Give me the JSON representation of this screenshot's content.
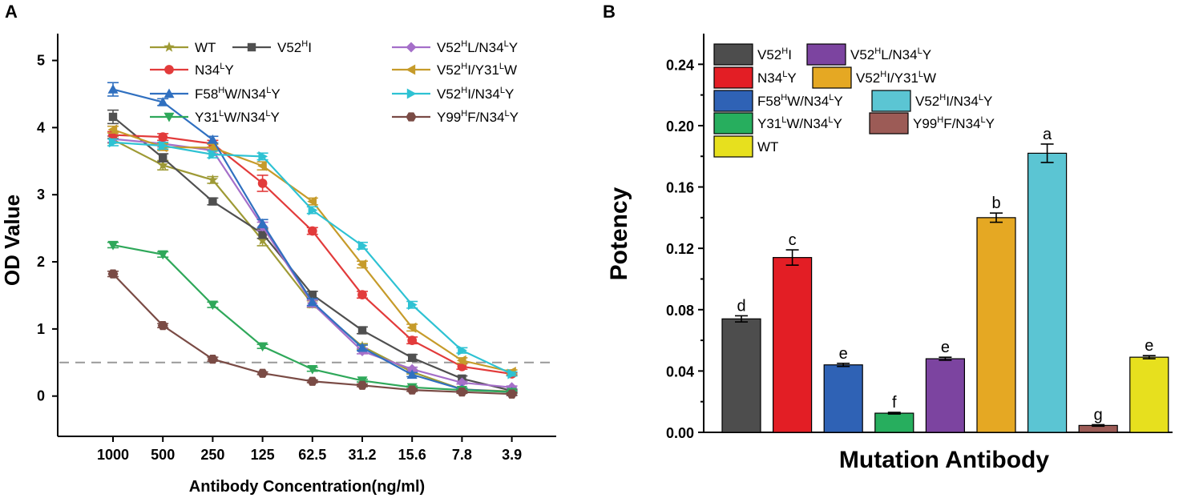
{
  "chart_data": [
    {
      "panel": "A",
      "type": "line",
      "xlabel": "Antibody Concentration(ng/ml)",
      "ylabel": "OD Value",
      "categories": [
        "1000",
        "500",
        "250",
        "125",
        "62.5",
        "31.2",
        "15.6",
        "7.8",
        "3.9"
      ],
      "ylim": [
        -0.6,
        5.4
      ],
      "yticks": [
        0,
        1,
        2,
        3,
        4,
        5
      ],
      "cutoff": 0.5,
      "series": [
        {
          "name": "WT",
          "base": "WT",
          "color": "#9E9A35",
          "marker": "star",
          "values": [
            3.82,
            3.44,
            3.22,
            2.32,
            1.37,
            0.74,
            0.36,
            0.1,
            0.07
          ],
          "errors": [
            0.05,
            0.07,
            0.05,
            0.08,
            0.05,
            0.04,
            0.03,
            0.02,
            0.02
          ]
        },
        {
          "name": "V52HI",
          "base": "V52",
          "supA": "H",
          "mid": "I",
          "color": "#505050",
          "marker": "square",
          "values": [
            4.16,
            3.55,
            2.9,
            2.42,
            1.51,
            0.98,
            0.57,
            0.26,
            0.08
          ],
          "errors": [
            0.1,
            0.06,
            0.05,
            0.07,
            0.05,
            0.05,
            0.05,
            0.04,
            0.02
          ]
        },
        {
          "name": "V52HL/N34LY",
          "base": "V52",
          "supA": "H",
          "mid": "L/N34",
          "supB": "L",
          "tail": "Y",
          "color": "#A56FC9",
          "marker": "diamond",
          "values": [
            3.83,
            3.76,
            3.66,
            2.53,
            1.38,
            0.67,
            0.4,
            0.2,
            0.13
          ],
          "errors": [
            0.05,
            0.05,
            0.05,
            0.06,
            0.05,
            0.04,
            0.03,
            0.02,
            0.02
          ]
        },
        {
          "name": "N34LY",
          "base": "N34",
          "supA": "L",
          "mid": "Y",
          "color": "#E23B3B",
          "marker": "circle",
          "values": [
            3.89,
            3.86,
            3.76,
            3.17,
            2.46,
            1.51,
            0.83,
            0.44,
            0.33
          ],
          "errors": [
            0.05,
            0.05,
            0.05,
            0.12,
            0.05,
            0.05,
            0.05,
            0.04,
            0.02
          ]
        },
        {
          "name": "V52HI/Y31LW",
          "base": "V52",
          "supA": "H",
          "mid": "I/Y31",
          "supB": "L",
          "tail": "W",
          "color": "#C69B2A",
          "marker": "tri-left",
          "values": [
            3.97,
            3.71,
            3.7,
            3.43,
            2.9,
            1.96,
            1.02,
            0.53,
            0.36
          ],
          "errors": [
            0.05,
            0.05,
            0.05,
            0.06,
            0.05,
            0.05,
            0.05,
            0.04,
            0.03
          ]
        },
        {
          "name": "F58HW/N34LY",
          "base": "F58",
          "supA": "H",
          "mid": "W/N34",
          "supB": "L",
          "tail": "Y",
          "color": "#3070C0",
          "marker": "tri-up",
          "values": [
            4.57,
            4.38,
            3.82,
            2.57,
            1.4,
            0.72,
            0.32,
            0.1,
            0.06
          ],
          "errors": [
            0.1,
            0.05,
            0.05,
            0.06,
            0.05,
            0.04,
            0.03,
            0.02,
            0.02
          ]
        },
        {
          "name": "V52HI/N34LY",
          "base": "V52",
          "supA": "H",
          "mid": "I/N34",
          "supB": "L",
          "tail": "Y",
          "color": "#2EC2D3",
          "marker": "tri-right",
          "values": [
            3.78,
            3.73,
            3.6,
            3.57,
            2.77,
            2.24,
            1.36,
            0.68,
            0.33
          ],
          "errors": [
            0.05,
            0.05,
            0.05,
            0.05,
            0.05,
            0.05,
            0.05,
            0.04,
            0.03
          ]
        },
        {
          "name": "Y31LW/N34LY",
          "base": "Y31",
          "supA": "L",
          "mid": "W/N34",
          "supB": "L",
          "tail": "Y",
          "color": "#2FA85A",
          "marker": "tri-down",
          "values": [
            2.25,
            2.11,
            1.36,
            0.74,
            0.4,
            0.23,
            0.13,
            0.09,
            0.06
          ],
          "errors": [
            0.04,
            0.04,
            0.04,
            0.03,
            0.03,
            0.02,
            0.02,
            0.02,
            0.02
          ]
        },
        {
          "name": "Y99HF/N34LY",
          "base": "Y99",
          "supA": "H",
          "mid": "F/N34",
          "supB": "L",
          "tail": "Y",
          "color": "#7A4B45",
          "marker": "hexagon",
          "values": [
            1.82,
            1.05,
            0.55,
            0.34,
            0.22,
            0.16,
            0.09,
            0.06,
            0.03
          ],
          "errors": [
            0.04,
            0.03,
            0.03,
            0.02,
            0.02,
            0.02,
            0.02,
            0.02,
            0.02
          ]
        }
      ]
    },
    {
      "panel": "B",
      "type": "bar",
      "xlabel": "Mutation Antibody",
      "ylabel": "Potency",
      "ylim": [
        0,
        0.26
      ],
      "yticks": [
        "0.00",
        "0.04",
        "0.08",
        "0.12",
        "0.16",
        "0.20",
        "0.24"
      ],
      "bars": [
        {
          "name": "V52HI",
          "value": 0.074,
          "error": 0.002,
          "letter": "d",
          "color": "#4D4D4D"
        },
        {
          "name": "N34LY",
          "value": 0.114,
          "error": 0.005,
          "letter": "c",
          "color": "#E31E25"
        },
        {
          "name": "F58HW/N34LY",
          "value": 0.044,
          "error": 0.001,
          "letter": "e",
          "color": "#2F62B5"
        },
        {
          "name": "Y31LW/N34LY",
          "value": 0.0125,
          "error": 0.0005,
          "letter": "f",
          "color": "#27AE5E"
        },
        {
          "name": "V52HL/N34LY",
          "value": 0.048,
          "error": 0.001,
          "letter": "e",
          "color": "#7C44A0"
        },
        {
          "name": "V52HI/Y31LW",
          "value": 0.14,
          "error": 0.003,
          "letter": "b",
          "color": "#E5A823"
        },
        {
          "name": "V52HI/N34LY",
          "value": 0.182,
          "error": 0.006,
          "letter": "a",
          "color": "#5BC5D3"
        },
        {
          "name": "Y99HF/N34LY",
          "value": 0.0045,
          "error": 0.0005,
          "letter": "g",
          "color": "#9C5B56"
        },
        {
          "name": "WT",
          "value": 0.049,
          "error": 0.001,
          "letter": "e",
          "color": "#E7E01E"
        }
      ],
      "legend": [
        {
          "name": "V52HI",
          "base": "V52",
          "supA": "H",
          "mid": "I",
          "color": "#4D4D4D"
        },
        {
          "name": "V52HL/N34LY",
          "base": "V52",
          "supA": "H",
          "mid": "L/N34",
          "supB": "L",
          "tail": "Y",
          "color": "#7C44A0"
        },
        {
          "name": "N34LY",
          "base": "N34",
          "supA": "L",
          "mid": "Y",
          "color": "#E31E25"
        },
        {
          "name": "V52HI/Y31LW",
          "base": "V52",
          "supA": "H",
          "mid": "I/Y31",
          "supB": "L",
          "tail": "W",
          "color": "#E5A823"
        },
        {
          "name": "F58HW/N34LY",
          "base": "F58",
          "supA": "H",
          "mid": "W/N34",
          "supB": "L",
          "tail": "Y",
          "color": "#2F62B5"
        },
        {
          "name": "V52HI/N34LY",
          "base": "V52",
          "supA": "H",
          "mid": "I/N34",
          "supB": "L",
          "tail": "Y",
          "color": "#5BC5D3"
        },
        {
          "name": "Y31LW/N34LY",
          "base": "Y31",
          "supA": "L",
          "mid": "W/N34",
          "supB": "L",
          "tail": "Y",
          "color": "#27AE5E"
        },
        {
          "name": "Y99HF/N34LY",
          "base": "Y99",
          "supA": "H",
          "mid": "F/N34",
          "supB": "L",
          "tail": "Y",
          "color": "#9C5B56"
        },
        {
          "name": "WT",
          "base": "WT",
          "color": "#E7E01E"
        }
      ]
    }
  ]
}
